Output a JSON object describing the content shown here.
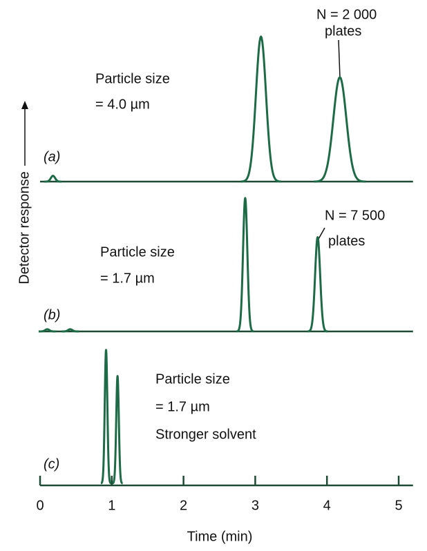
{
  "chart_data": {
    "type": "line",
    "xlabel": "Time (min)",
    "ylabel": "Detector response",
    "xlim": [
      0,
      5.2
    ],
    "xticks": [
      0,
      1,
      2,
      3,
      4,
      5
    ],
    "ylim": [
      0,
      1
    ],
    "color": "#1d6b46",
    "panels": [
      {
        "label": "(a)",
        "annotations": [
          "Particle size",
          "= 4.0 µm",
          "N = 2 000",
          "plates"
        ],
        "peaks": [
          {
            "center": 0.18,
            "height": 0.04,
            "width": 0.03
          },
          {
            "center": 3.08,
            "height": 1.0,
            "width": 0.07
          },
          {
            "center": 4.18,
            "height": 0.72,
            "width": 0.09
          }
        ]
      },
      {
        "label": "(b)",
        "annotations": [
          "Particle size",
          "= 1.7 µm",
          "N = 7 500",
          "plates"
        ],
        "peaks": [
          {
            "center": 0.1,
            "height": 0.015,
            "width": 0.03
          },
          {
            "center": 0.42,
            "height": 0.015,
            "width": 0.03
          },
          {
            "center": 2.86,
            "height": 0.92,
            "width": 0.03
          },
          {
            "center": 3.87,
            "height": 0.65,
            "width": 0.035
          }
        ]
      },
      {
        "label": "(c)",
        "annotations": [
          "Particle size",
          "= 1.7 µm",
          "Stronger solvent"
        ],
        "peaks": [
          {
            "center": 0.92,
            "height": 0.92,
            "width": 0.018
          },
          {
            "center": 1.08,
            "height": 0.74,
            "width": 0.018
          }
        ]
      }
    ]
  }
}
